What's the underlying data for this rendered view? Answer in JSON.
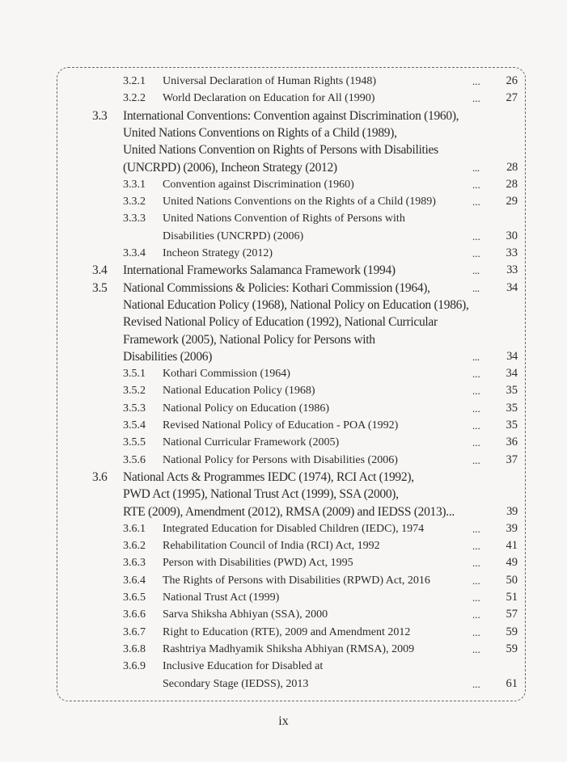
{
  "entries": [
    {
      "level": 2,
      "num": "3.2.1",
      "lines": [
        "Universal Declaration of Human Rights (1948)"
      ],
      "page": "26"
    },
    {
      "level": 2,
      "num": "3.2.2",
      "lines": [
        "World Declaration on Education for All (1990)"
      ],
      "page": "27"
    },
    {
      "level": 1,
      "num": "3.3",
      "lines": [
        "International Conventions: Convention against Discrimination (1960),",
        "United Nations Conventions on Rights of a Child (1989),",
        "United Nations Convention on Rights of Persons with Disabilities",
        "(UNCRPD) (2006), Incheon Strategy (2012)"
      ],
      "page": "28"
    },
    {
      "level": 2,
      "num": "3.3.1",
      "lines": [
        "Convention against Discrimination (1960)"
      ],
      "page": "28"
    },
    {
      "level": 2,
      "num": "3.3.2",
      "lines": [
        "United Nations Conventions on the Rights of a Child (1989)"
      ],
      "page": "29"
    },
    {
      "level": 2,
      "num": "3.3.3",
      "lines": [
        "United Nations Convention of Rights of Persons with",
        "Disabilities (UNCRPD) (2006)"
      ],
      "page": "30"
    },
    {
      "level": 2,
      "num": "3.3.4",
      "lines": [
        "Incheon Strategy (2012)"
      ],
      "page": "33"
    },
    {
      "level": 1,
      "num": "3.4",
      "lines": [
        "International Frameworks Salamanca Framework (1994)"
      ],
      "page": "33"
    },
    {
      "level": 1,
      "num": "3.5",
      "lines": [
        "National Commissions & Policies: Kothari Commission (1964),",
        "National Education Policy (1968), National Policy on Education (1986),",
        "Revised National Policy of Education (1992), National Curricular",
        "Framework (2005), National Policy for Persons with",
        "Disabilities (2006)"
      ],
      "page": "34",
      "first_line_page": "34"
    },
    {
      "level": 2,
      "num": "3.5.1",
      "lines": [
        "Kothari Commission (1964)"
      ],
      "page": "34"
    },
    {
      "level": 2,
      "num": "3.5.2",
      "lines": [
        "National Education Policy (1968)"
      ],
      "page": "35"
    },
    {
      "level": 2,
      "num": "3.5.3",
      "lines": [
        "National Policy on Education (1986)"
      ],
      "page": "35"
    },
    {
      "level": 2,
      "num": "3.5.4",
      "lines": [
        "Revised National Policy of Education - POA (1992)"
      ],
      "page": "35"
    },
    {
      "level": 2,
      "num": "3.5.5",
      "lines": [
        "National Curricular Framework (2005)"
      ],
      "page": "36"
    },
    {
      "level": 2,
      "num": "3.5.6",
      "lines": [
        "National Policy for Persons with Disabilities (2006)"
      ],
      "page": "37"
    },
    {
      "level": 1,
      "num": "3.6",
      "lines": [
        "National Acts & Programmes IEDC (1974), RCI Act (1992),",
        "PWD Act (1995), National Trust Act (1999), SSA (2000),",
        "RTE (2009), Amendment (2012), RMSA (2009) and IEDSS (2013)..."
      ],
      "page": "39",
      "no_dots": true
    },
    {
      "level": 2,
      "num": "3.6.1",
      "lines": [
        "Integrated Education for Disabled Children (IEDC), 1974"
      ],
      "page": "39"
    },
    {
      "level": 2,
      "num": "3.6.2",
      "lines": [
        "Rehabilitation Council of India (RCI) Act, 1992"
      ],
      "page": "41"
    },
    {
      "level": 2,
      "num": "3.6.3",
      "lines": [
        "Person with Disabilities (PWD) Act, 1995"
      ],
      "page": "49"
    },
    {
      "level": 2,
      "num": "3.6.4",
      "lines": [
        "The Rights of Persons with Disabilities (RPWD) Act, 2016"
      ],
      "page": "50"
    },
    {
      "level": 2,
      "num": "3.6.5",
      "lines": [
        "National Trust Act (1999)"
      ],
      "page": "51"
    },
    {
      "level": 2,
      "num": "3.6.6",
      "lines": [
        "Sarva Shiksha Abhiyan (SSA), 2000"
      ],
      "page": "57"
    },
    {
      "level": 2,
      "num": "3.6.7",
      "lines": [
        "Right to Education (RTE), 2009 and Amendment 2012"
      ],
      "page": "59"
    },
    {
      "level": 2,
      "num": "3.6.8",
      "lines": [
        "Rashtriya Madhyamik Shiksha Abhiyan (RMSA), 2009"
      ],
      "page": "59"
    },
    {
      "level": 2,
      "num": "3.6.9",
      "lines": [
        "Inclusive Education for Disabled at",
        "Secondary Stage (IEDSS), 2013"
      ],
      "page": "61"
    }
  ],
  "leader": "...",
  "folio": "ix"
}
